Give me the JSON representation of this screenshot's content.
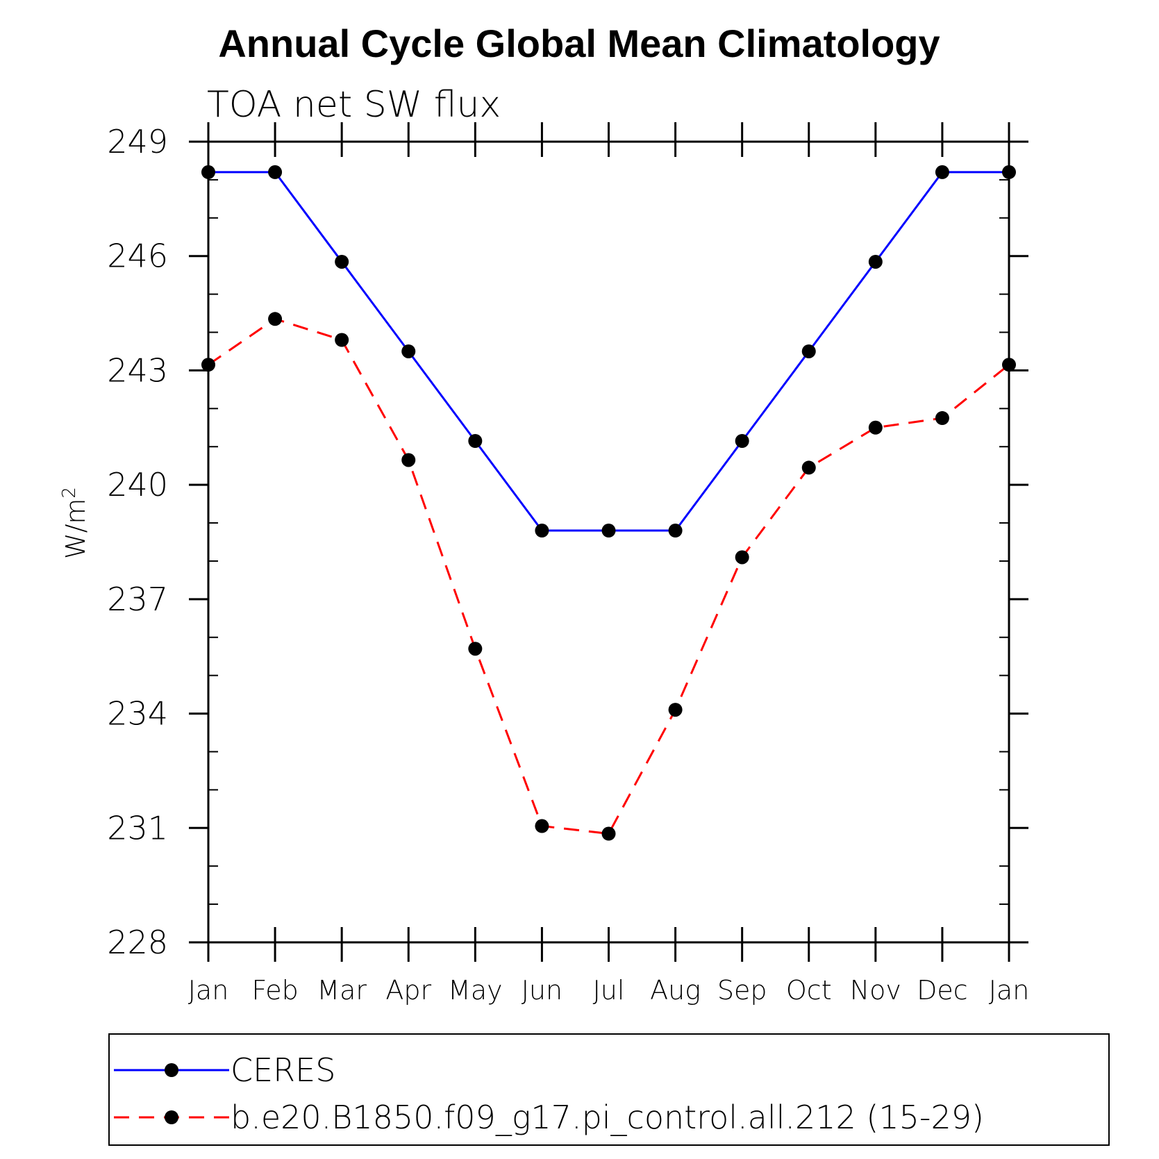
{
  "chart_data": {
    "type": "line",
    "title": "Annual Cycle Global Mean Climatology",
    "subtitle": "TOA net SW flux",
    "ylabel": "W/m",
    "ylabel_superscript": "2",
    "ylim": [
      228,
      249
    ],
    "yticks": [
      "228",
      "231",
      "234",
      "237",
      "240",
      "243",
      "246",
      "249"
    ],
    "categories": [
      "Jan",
      "Feb",
      "Mar",
      "Apr",
      "May",
      "Jun",
      "Jul",
      "Aug",
      "Sep",
      "Oct",
      "Nov",
      "Dec",
      "Jan"
    ],
    "series": [
      {
        "name": "CERES",
        "color": "#0000ff",
        "dash": "solid",
        "values": [
          248.2,
          248.2,
          245.85,
          243.5,
          241.15,
          238.8,
          238.8,
          238.8,
          241.15,
          243.5,
          245.85,
          248.2,
          248.2
        ]
      },
      {
        "name": "b.e20.B1850.f09_g17.pi_control.all.212 (15-29)",
        "color": "#ff0000",
        "dash": "dashed",
        "values": [
          243.15,
          244.35,
          243.8,
          240.65,
          235.7,
          231.05,
          230.85,
          234.1,
          238.1,
          240.45,
          241.5,
          241.75,
          243.15
        ]
      }
    ],
    "legend_position": "bottom"
  }
}
